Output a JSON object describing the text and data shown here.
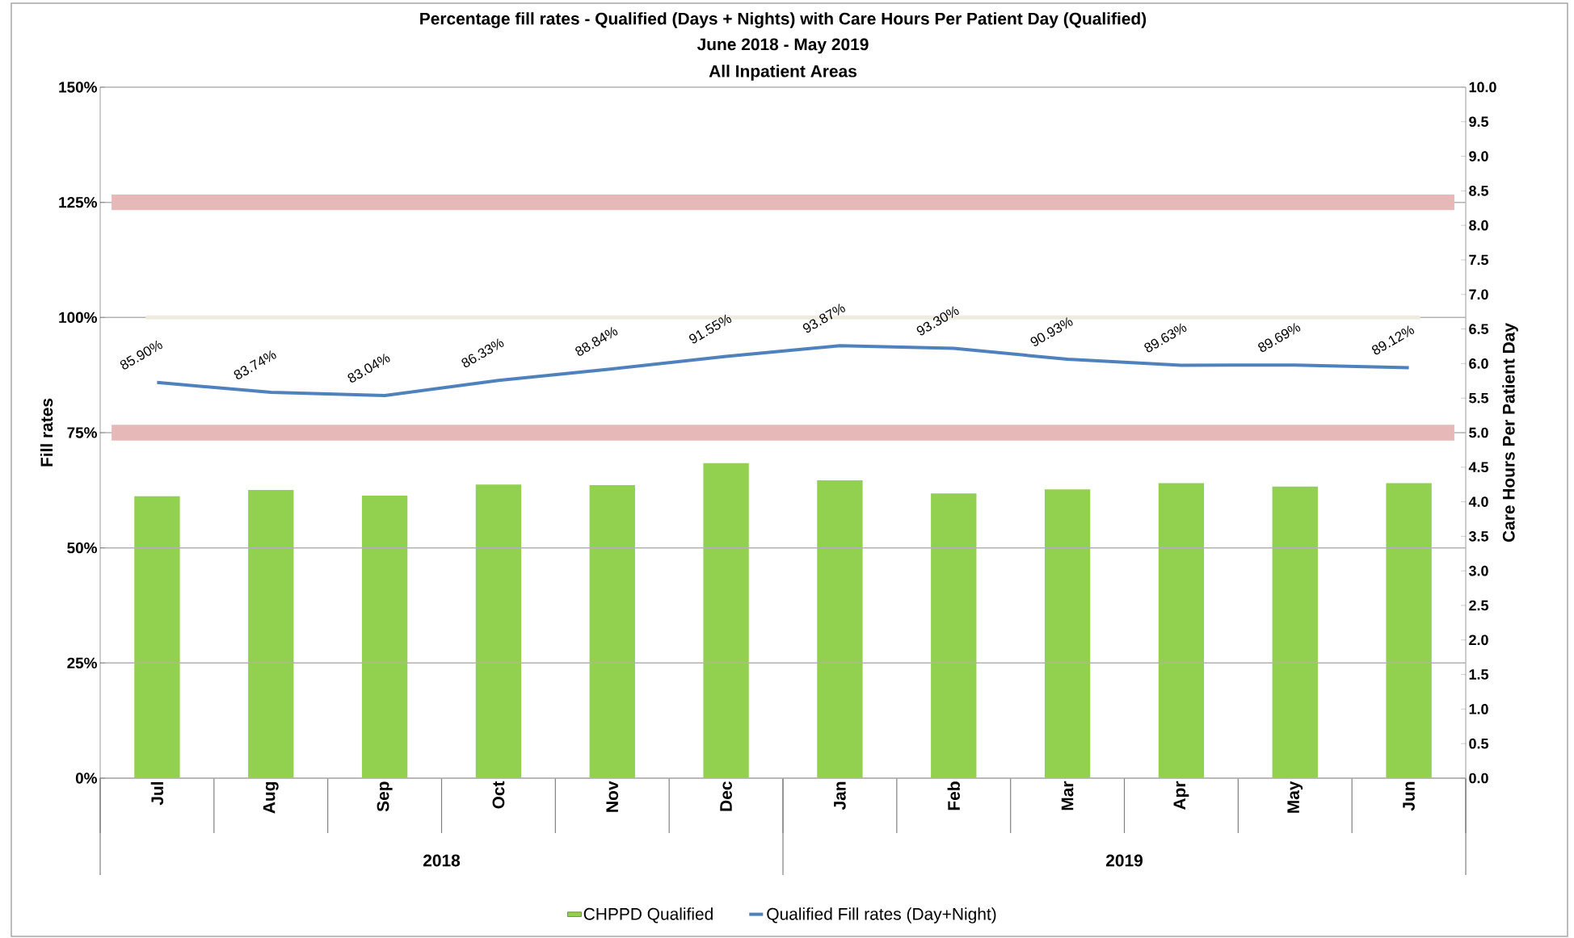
{
  "chart_data": {
    "type": "bar",
    "title": "Percentage fill rates - Qualified (Days + Nights) with Care Hours Per Patient Day (Qualified)",
    "subtitle": "June 2018 - May 2019",
    "annotations": [
      "All Inpatient Areas",
      "2018",
      "2019"
    ],
    "categories": [
      "Jul",
      "Aug",
      "Sep",
      "Oct",
      "Nov",
      "Dec",
      "Jan",
      "Feb",
      "Mar",
      "Apr",
      "May",
      "Jun"
    ],
    "series": [
      {
        "name": "CHPPD Qualified",
        "axis": "y2",
        "color": "#92d050",
        "values": [
          4.08,
          4.17,
          4.09,
          4.25,
          4.24,
          4.56,
          4.31,
          4.12,
          4.18,
          4.27,
          4.22,
          4.27
        ]
      },
      {
        "name": "Qualified Fill rates (Day+Night)",
        "type": "line",
        "axis": "y",
        "color": "#4f81bd",
        "values": [
          85.9,
          83.74,
          83.04,
          86.33,
          88.84,
          91.55,
          93.87,
          93.3,
          90.93,
          89.63,
          89.69,
          89.12
        ],
        "value_labels": [
          "85.90%",
          "83.74%",
          "83.04%",
          "86.33%",
          "88.84%",
          "91.55%",
          "93.87%",
          "93.30%",
          "90.93%",
          "89.63%",
          "89.69%",
          "89.12%"
        ]
      }
    ],
    "ylabel": "Fill rates",
    "y2label": "Care Hours Per Patient Day",
    "ylim": [
      0,
      150
    ],
    "yticks": [
      {
        "value": 0,
        "label": "0%"
      },
      {
        "value": 25,
        "label": "25%"
      },
      {
        "value": 50,
        "label": "50%"
      },
      {
        "value": 75,
        "label": "75%"
      },
      {
        "value": 100,
        "label": "100%"
      },
      {
        "value": 125,
        "label": "125%"
      },
      {
        "value": 150,
        "label": "150%"
      }
    ],
    "y2lim": [
      0,
      10
    ],
    "y2ticks": [
      {
        "value": 0,
        "label": "0.0"
      },
      {
        "value": 0.5,
        "label": "0.5"
      },
      {
        "value": 1,
        "label": "1.0"
      },
      {
        "value": 1.5,
        "label": "1.5"
      },
      {
        "value": 2,
        "label": "2.0"
      },
      {
        "value": 2.5,
        "label": "2.5"
      },
      {
        "value": 3,
        "label": "3.0"
      },
      {
        "value": 3.5,
        "label": "3.5"
      },
      {
        "value": 4,
        "label": "4.0"
      },
      {
        "value": 4.5,
        "label": "4.5"
      },
      {
        "value": 5,
        "label": "5.0"
      },
      {
        "value": 5.5,
        "label": "5.5"
      },
      {
        "value": 6,
        "label": "6.0"
      },
      {
        "value": 6.5,
        "label": "6.5"
      },
      {
        "value": 7,
        "label": "7.0"
      },
      {
        "value": 7.5,
        "label": "7.5"
      },
      {
        "value": 8,
        "label": "8.0"
      },
      {
        "value": 8.5,
        "label": "8.5"
      },
      {
        "value": 9,
        "label": "9.0"
      },
      {
        "value": 9.5,
        "label": "9.5"
      },
      {
        "value": 10,
        "label": "10.0"
      }
    ],
    "bands": [
      {
        "axis": "y",
        "from": 123.3,
        "to": 126.7,
        "color": "#e6b9b8"
      },
      {
        "axis": "y",
        "from": 73.3,
        "to": 76.7,
        "color": "#e6b9b8"
      }
    ],
    "ref_lines": [
      {
        "axis": "y",
        "value": 100,
        "color": "#eeece1"
      }
    ],
    "grid": "y",
    "legend": "bottom"
  }
}
